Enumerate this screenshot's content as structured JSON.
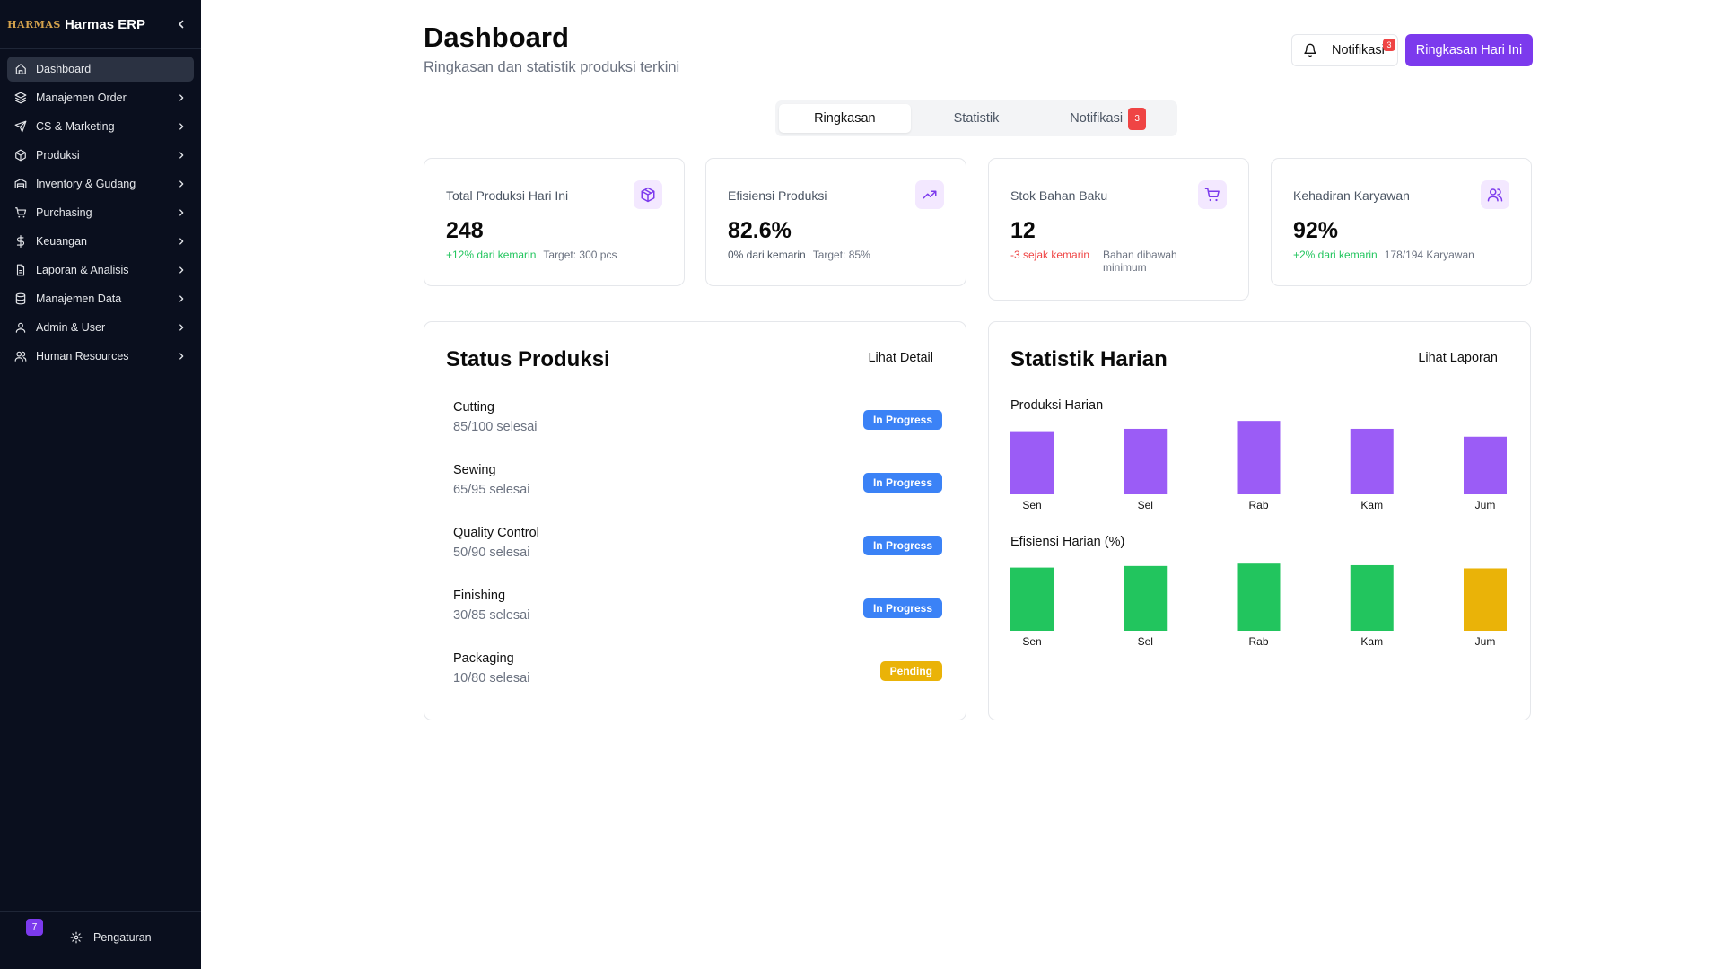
{
  "sidebar": {
    "logo_text": "HARMAS",
    "app_name": "Harmas ERP",
    "items": [
      {
        "label": "Dashboard",
        "icon": "home-icon",
        "active": true,
        "chevron": false
      },
      {
        "label": "Manajemen Order",
        "icon": "layers-icon",
        "chevron": true
      },
      {
        "label": "CS & Marketing",
        "icon": "send-icon",
        "chevron": true
      },
      {
        "label": "Produksi",
        "icon": "package-icon",
        "chevron": true
      },
      {
        "label": "Inventory & Gudang",
        "icon": "warehouse-icon",
        "chevron": true
      },
      {
        "label": "Purchasing",
        "icon": "cart-icon",
        "chevron": true
      },
      {
        "label": "Keuangan",
        "icon": "dollar-icon",
        "chevron": true
      },
      {
        "label": "Laporan & Analisis",
        "icon": "file-icon",
        "chevron": true
      },
      {
        "label": "Manajemen Data",
        "icon": "database-icon",
        "chevron": true
      },
      {
        "label": "Admin & User",
        "icon": "user-icon",
        "chevron": true
      },
      {
        "label": "Human Resources",
        "icon": "users-icon",
        "chevron": true
      }
    ],
    "footer": {
      "version_badge": "7",
      "settings_label": "Pengaturan"
    }
  },
  "header": {
    "title": "Dashboard",
    "subtitle": "Ringkasan dan statistik produksi terkini",
    "notif_label": "Notifikasi",
    "notif_count": "3",
    "primary_label": "Ringkasan Hari Ini"
  },
  "tabs": [
    {
      "label": "Ringkasan",
      "active": true
    },
    {
      "label": "Statistik"
    },
    {
      "label": "Notifikasi",
      "count": "3"
    }
  ],
  "stats": [
    {
      "title": "Total Produksi Hari Ini",
      "icon": "box-icon",
      "value": "248",
      "change": "+12% dari kemarin",
      "change_type": "up",
      "note": "Target: 300 pcs"
    },
    {
      "title": "Efisiensi Produksi",
      "icon": "trending-up-icon",
      "value": "82.6%",
      "change": "0% dari kemarin",
      "change_type": "neutral",
      "note": "Target: 85%"
    },
    {
      "title": "Stok Bahan Baku",
      "icon": "cart-icon",
      "value": "12",
      "change": "-3 sejak kemarin",
      "change_type": "down",
      "note": "Bahan dibawah minimum"
    },
    {
      "title": "Kehadiran Karyawan",
      "icon": "users-icon",
      "value": "92%",
      "change": "+2% dari kemarin",
      "change_type": "up",
      "note": "178/194 Karyawan"
    }
  ],
  "status_produksi": {
    "title": "Status Produksi",
    "link": "Lihat Detail",
    "items": [
      {
        "name": "Cutting",
        "count": "85/100 selesai",
        "status": "In Progress"
      },
      {
        "name": "Sewing",
        "count": "65/95 selesai",
        "status": "In Progress"
      },
      {
        "name": "Quality Control",
        "count": "50/90 selesai",
        "status": "In Progress"
      },
      {
        "name": "Finishing",
        "count": "30/85 selesai",
        "status": "In Progress"
      },
      {
        "name": "Packaging",
        "count": "10/80 selesai",
        "status": "Pending"
      }
    ]
  },
  "statistik_harian": {
    "title": "Statistik Harian",
    "link": "Lihat Laporan"
  },
  "chart_data": [
    {
      "type": "bar",
      "title": "Produksi Harian",
      "categories": [
        "Sen",
        "Sel",
        "Rab",
        "Kam",
        "Jum"
      ],
      "values": [
        80,
        83,
        93,
        83,
        73
      ],
      "colors": [
        "#9b5cf6",
        "#9b5cf6",
        "#9b5cf6",
        "#9b5cf6",
        "#9b5cf6"
      ],
      "ylim": [
        0,
        100
      ]
    },
    {
      "type": "bar",
      "title": "Efisiensi Harian (%)",
      "categories": [
        "Sen",
        "Sel",
        "Rab",
        "Kam",
        "Jum"
      ],
      "values": [
        80,
        82,
        85,
        83,
        79
      ],
      "colors": [
        "#22c55e",
        "#22c55e",
        "#22c55e",
        "#22c55e",
        "#eab308"
      ],
      "ylim": [
        0,
        100
      ]
    }
  ]
}
